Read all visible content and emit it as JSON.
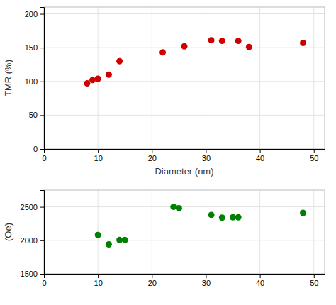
{
  "chart_data": [
    {
      "type": "scatter",
      "xlabel": "Diameter (nm)",
      "ylabel": "TMR (%)",
      "x": [
        8,
        9,
        10,
        12,
        14,
        22,
        26,
        31,
        33,
        36,
        38,
        48
      ],
      "values": [
        97,
        102,
        104,
        110,
        130,
        143,
        152,
        161,
        160,
        160,
        151,
        157
      ],
      "color": "#cc0000",
      "xlim": [
        0,
        52
      ],
      "ylim": [
        0,
        210
      ],
      "xticks": [
        0,
        10,
        20,
        30,
        40,
        50
      ],
      "yticks": [
        0,
        50,
        100,
        150,
        200
      ],
      "grid": true
    },
    {
      "type": "scatter",
      "ylabel": "(Oe)",
      "x": [
        10,
        12,
        14,
        15,
        24,
        25,
        31,
        33,
        35,
        36,
        48
      ],
      "values": [
        2080,
        1940,
        2005,
        2005,
        2500,
        2480,
        2380,
        2340,
        2345,
        2345,
        2410
      ],
      "color": "#008000",
      "xlim": [
        0,
        52
      ],
      "ylim": [
        1500,
        2750
      ],
      "xticks": [
        0,
        10,
        20,
        30,
        40,
        50
      ],
      "yticks": [
        1500,
        2000,
        2500
      ],
      "grid": true
    }
  ]
}
